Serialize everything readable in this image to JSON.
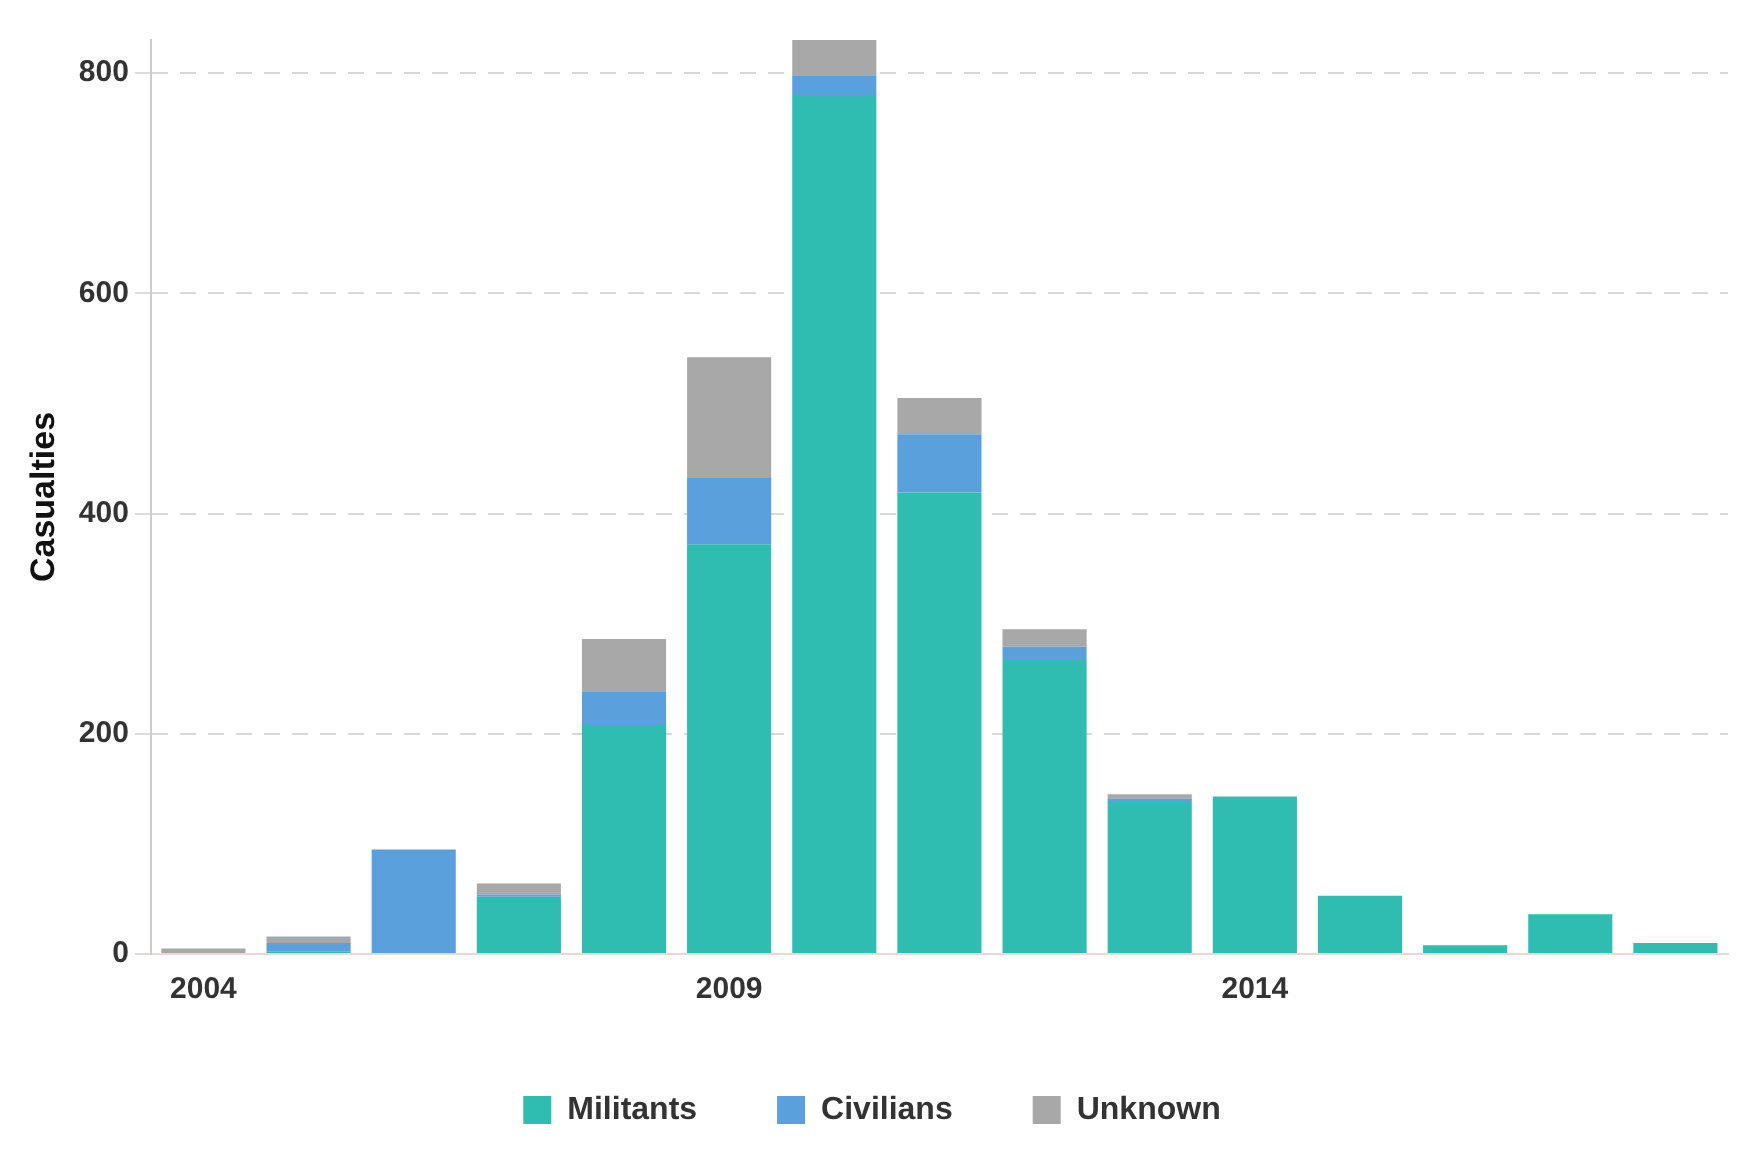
{
  "chart_data": {
    "type": "bar",
    "stacked": true,
    "ylabel": "Casualties",
    "categories": [
      "2004",
      null,
      null,
      null,
      null,
      "2009",
      null,
      null,
      null,
      null,
      "2014",
      null,
      null,
      null,
      null
    ],
    "series": [
      {
        "name": "Militants",
        "color": "#2ebdb0",
        "values": [
          0,
          2,
          0,
          52,
          208,
          372,
          780,
          419,
          268,
          138,
          143,
          53,
          8,
          36,
          10
        ]
      },
      {
        "name": "Civilians",
        "color": "#5aa0dc",
        "values": [
          0,
          8,
          95,
          2,
          30,
          61,
          18,
          53,
          11,
          3,
          0,
          0,
          0,
          0,
          0
        ]
      },
      {
        "name": "Unknown",
        "color": "#a8a8a8",
        "values": [
          5,
          6,
          0,
          10,
          48,
          109,
          32,
          33,
          16,
          4,
          0,
          0,
          0,
          0,
          0
        ]
      }
    ],
    "ylim": [
      0,
      830
    ],
    "yticks": [
      0,
      200,
      400,
      600,
      800
    ],
    "grid": "y",
    "legend": "bottom"
  }
}
